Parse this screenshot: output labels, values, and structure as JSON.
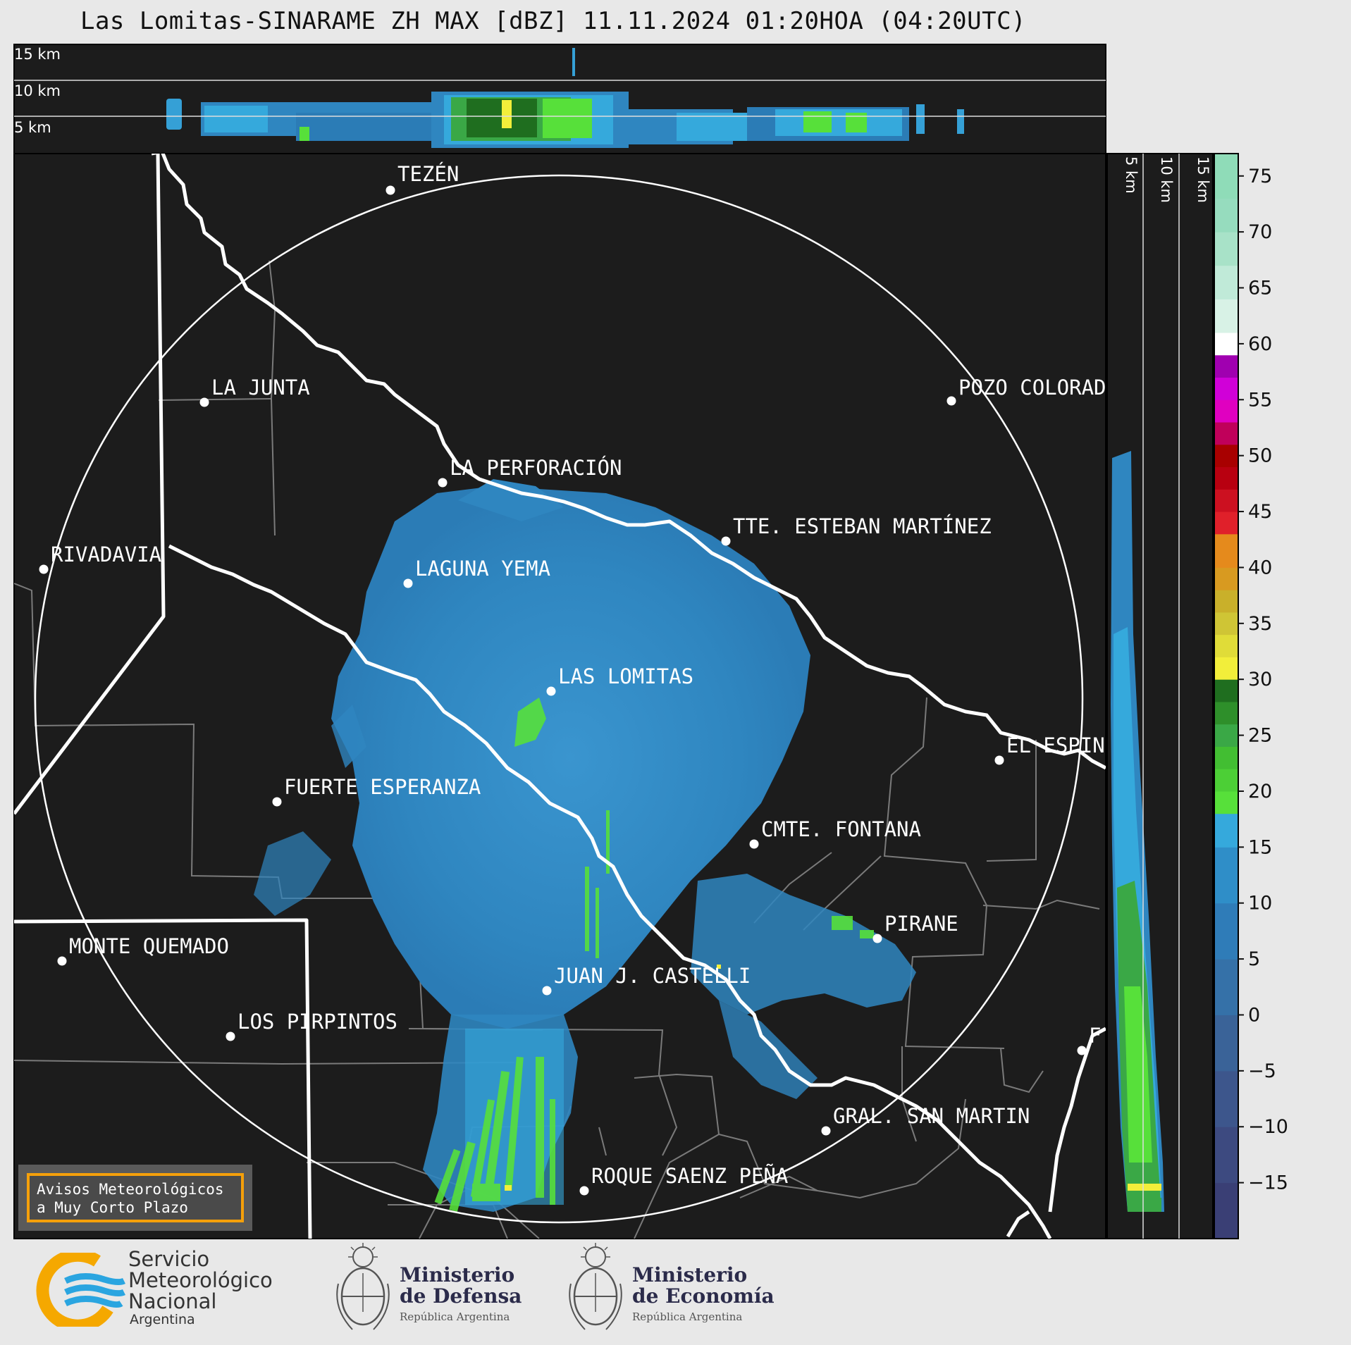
{
  "title": "Las Lomitas-SINARAME ZH MAX [dBZ] 11.11.2024 01:20HOA (04:20UTC)",
  "altitude_labels": {
    "top": [
      "15 km",
      "10 km",
      "5 km"
    ],
    "side": [
      "5 km",
      "10 km",
      "15 km"
    ]
  },
  "cities": [
    {
      "name": "TEZÉN"
    },
    {
      "name": "LA JUNTA"
    },
    {
      "name": "POZO COLORAD"
    },
    {
      "name": "LA PERFORACIÓN"
    },
    {
      "name": "TTE. ESTEBAN MARTÍNEZ"
    },
    {
      "name": "RIVADAVIA"
    },
    {
      "name": "LAGUNA YEMA"
    },
    {
      "name": "LAS LOMITAS"
    },
    {
      "name": "EL ESPIN"
    },
    {
      "name": "FUERTE ESPERANZA"
    },
    {
      "name": "CMTE. FONTANA"
    },
    {
      "name": "PIRANE"
    },
    {
      "name": "MONTE QUEMADO"
    },
    {
      "name": "JUAN J. CASTELLI"
    },
    {
      "name": "LOS PIRPINTOS"
    },
    {
      "name": "F"
    },
    {
      "name": "GRAL. SAN MARTIN"
    },
    {
      "name": "ROQUE SAENZ PEÑA"
    }
  ],
  "colorbar": {
    "ticks": [
      "75",
      "70",
      "65",
      "60",
      "55",
      "50",
      "45",
      "40",
      "35",
      "30",
      "25",
      "20",
      "15",
      "10",
      "5",
      "0",
      "−5",
      "−10",
      "−15"
    ],
    "range": [
      -20,
      77
    ],
    "unit": "dBZ",
    "colors": {
      "cold": "#3a3f75",
      "low": "#2f7cb8",
      "mid": "#35a9dc",
      "green_light": "#57e03a",
      "green_dark": "#1f6e1f",
      "yellow": "#f2ee3a",
      "orange": "#e58a1c",
      "red": "#a80000",
      "magenta": "#e000e0",
      "white": "#ffffff",
      "mint": "#8fdcb8"
    }
  },
  "notice": {
    "line1": "Avisos Meteorológicos",
    "line2": "a Muy Corto Plazo"
  },
  "logos": {
    "smn": {
      "name_lines": [
        "Servicio",
        "Meteorológico",
        "Nacional"
      ],
      "country": "Argentina"
    },
    "defensa": {
      "line1": "Ministerio",
      "line2": "de Defensa",
      "line3": "República Argentina"
    },
    "economia": {
      "line1": "Ministerio",
      "line2": "de Economía",
      "line3": "República Argentina"
    }
  }
}
